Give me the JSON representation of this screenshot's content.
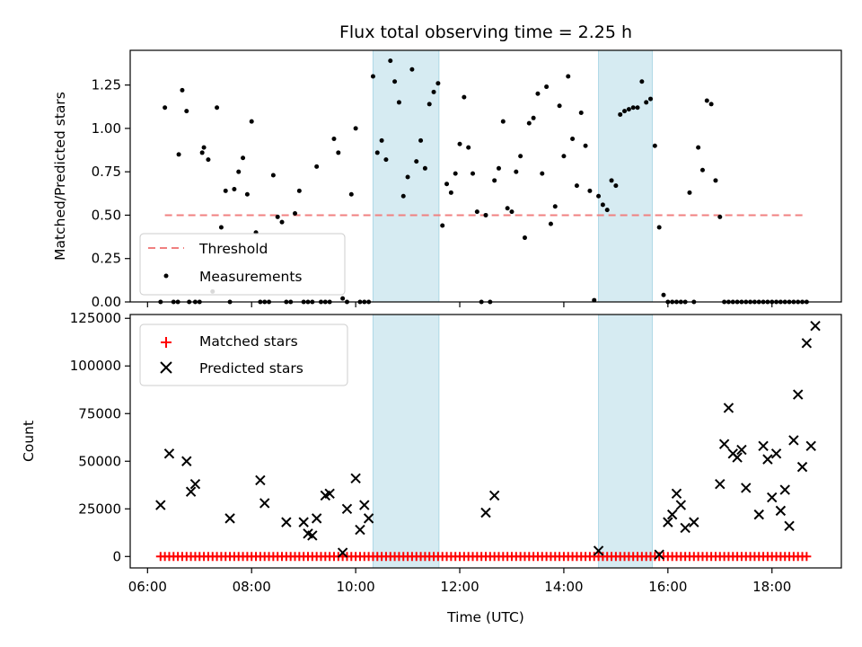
{
  "chart_data": [
    {
      "type": "scatter",
      "title": "Flux total observing time = 2.25 h",
      "xlabel": "",
      "ylabel": "Matched/Predicted stars",
      "xlim": [
        "05:40",
        "19:20"
      ],
      "ylim": [
        0,
        1.45
      ],
      "x_ticks": [
        "06:00",
        "08:00",
        "10:00",
        "12:00",
        "14:00",
        "16:00",
        "18:00"
      ],
      "y_ticks": [
        0.0,
        0.25,
        0.5,
        0.75,
        1.0,
        1.25
      ],
      "y_tick_labels": [
        "0.00",
        "0.25",
        "0.50",
        "0.75",
        "1.00",
        "1.25"
      ],
      "legend": "lower-left",
      "shaded_intervals": [
        [
          "10:20",
          "11:36"
        ],
        [
          "14:40",
          "15:42"
        ]
      ],
      "series": [
        {
          "name": "Threshold",
          "style": "dashed-line",
          "color": "#f08080",
          "x": [
            "06:20",
            "18:40"
          ],
          "y": [
            0.5,
            0.5
          ]
        },
        {
          "name": "Measurements",
          "style": "dots",
          "color": "#000000",
          "points": [
            [
              "06:15",
              0.0
            ],
            [
              "06:20",
              1.12
            ],
            [
              "06:30",
              0.0
            ],
            [
              "06:35",
              0.0
            ],
            [
              "06:36",
              0.85
            ],
            [
              "06:40",
              1.22
            ],
            [
              "06:45",
              1.1
            ],
            [
              "06:48",
              0.0
            ],
            [
              "06:55",
              0.0
            ],
            [
              "07:00",
              0.0
            ],
            [
              "07:03",
              0.86
            ],
            [
              "07:05",
              0.89
            ],
            [
              "07:10",
              0.82
            ],
            [
              "07:15",
              0.06
            ],
            [
              "07:20",
              1.12
            ],
            [
              "07:25",
              0.43
            ],
            [
              "07:30",
              0.64
            ],
            [
              "07:35",
              0.0
            ],
            [
              "07:40",
              0.65
            ],
            [
              "07:45",
              0.75
            ],
            [
              "07:50",
              0.83
            ],
            [
              "07:55",
              0.62
            ],
            [
              "08:00",
              1.04
            ],
            [
              "08:05",
              0.4
            ],
            [
              "08:10",
              0.0
            ],
            [
              "08:15",
              0.0
            ],
            [
              "08:20",
              0.0
            ],
            [
              "08:25",
              0.73
            ],
            [
              "08:30",
              0.49
            ],
            [
              "08:35",
              0.46
            ],
            [
              "08:40",
              0.0
            ],
            [
              "08:45",
              0.0
            ],
            [
              "08:50",
              0.51
            ],
            [
              "08:55",
              0.64
            ],
            [
              "09:00",
              0.0
            ],
            [
              "09:05",
              0.0
            ],
            [
              "09:10",
              0.0
            ],
            [
              "09:15",
              0.78
            ],
            [
              "09:20",
              0.0
            ],
            [
              "09:25",
              0.0
            ],
            [
              "09:30",
              0.0
            ],
            [
              "09:35",
              0.94
            ],
            [
              "09:40",
              0.86
            ],
            [
              "09:45",
              0.02
            ],
            [
              "09:50",
              0.0
            ],
            [
              "09:55",
              0.62
            ],
            [
              "10:00",
              1.0
            ],
            [
              "10:05",
              0.0
            ],
            [
              "10:10",
              0.0
            ],
            [
              "10:15",
              0.0
            ],
            [
              "10:20",
              1.3
            ],
            [
              "10:25",
              0.86
            ],
            [
              "10:30",
              0.93
            ],
            [
              "10:35",
              0.82
            ],
            [
              "10:40",
              1.39
            ],
            [
              "10:45",
              1.27
            ],
            [
              "10:50",
              1.15
            ],
            [
              "10:55",
              0.61
            ],
            [
              "11:00",
              0.72
            ],
            [
              "11:05",
              1.34
            ],
            [
              "11:10",
              0.81
            ],
            [
              "11:15",
              0.93
            ],
            [
              "11:20",
              0.77
            ],
            [
              "11:25",
              1.14
            ],
            [
              "11:30",
              1.21
            ],
            [
              "11:35",
              1.26
            ],
            [
              "11:40",
              0.44
            ],
            [
              "11:45",
              0.68
            ],
            [
              "11:50",
              0.63
            ],
            [
              "11:55",
              0.74
            ],
            [
              "12:00",
              0.91
            ],
            [
              "12:05",
              1.18
            ],
            [
              "12:10",
              0.89
            ],
            [
              "12:15",
              0.74
            ],
            [
              "12:20",
              0.52
            ],
            [
              "12:25",
              0.0
            ],
            [
              "12:30",
              0.5
            ],
            [
              "12:35",
              0.0
            ],
            [
              "12:40",
              0.7
            ],
            [
              "12:45",
              0.77
            ],
            [
              "12:50",
              1.04
            ],
            [
              "12:55",
              0.54
            ],
            [
              "13:00",
              0.52
            ],
            [
              "13:05",
              0.75
            ],
            [
              "13:10",
              0.84
            ],
            [
              "13:15",
              0.37
            ],
            [
              "13:20",
              1.03
            ],
            [
              "13:25",
              1.06
            ],
            [
              "13:30",
              1.2
            ],
            [
              "13:35",
              0.74
            ],
            [
              "13:40",
              1.24
            ],
            [
              "13:45",
              0.45
            ],
            [
              "13:50",
              0.55
            ],
            [
              "13:55",
              1.13
            ],
            [
              "14:00",
              0.84
            ],
            [
              "14:05",
              1.3
            ],
            [
              "14:10",
              0.94
            ],
            [
              "14:15",
              0.67
            ],
            [
              "14:20",
              1.09
            ],
            [
              "14:25",
              0.9
            ],
            [
              "14:30",
              0.64
            ],
            [
              "14:35",
              0.01
            ],
            [
              "14:40",
              0.61
            ],
            [
              "14:45",
              0.56
            ],
            [
              "14:50",
              0.53
            ],
            [
              "14:55",
              0.7
            ],
            [
              "15:00",
              0.67
            ],
            [
              "15:05",
              1.08
            ],
            [
              "15:10",
              1.1
            ],
            [
              "15:15",
              1.11
            ],
            [
              "15:20",
              1.12
            ],
            [
              "15:25",
              1.12
            ],
            [
              "15:30",
              1.27
            ],
            [
              "15:35",
              1.15
            ],
            [
              "15:40",
              1.17
            ],
            [
              "15:45",
              0.9
            ],
            [
              "15:50",
              0.43
            ],
            [
              "15:55",
              0.04
            ],
            [
              "16:00",
              0.0
            ],
            [
              "16:05",
              0.0
            ],
            [
              "16:10",
              0.0
            ],
            [
              "16:15",
              0.0
            ],
            [
              "16:20",
              0.0
            ],
            [
              "16:25",
              0.63
            ],
            [
              "16:30",
              0.0
            ],
            [
              "16:35",
              0.89
            ],
            [
              "16:40",
              0.76
            ],
            [
              "16:45",
              1.16
            ],
            [
              "16:50",
              1.14
            ],
            [
              "16:55",
              0.7
            ],
            [
              "17:00",
              0.49
            ],
            [
              "17:05",
              0.0
            ],
            [
              "17:10",
              0.0
            ],
            [
              "17:15",
              0.0
            ],
            [
              "17:20",
              0.0
            ],
            [
              "17:25",
              0.0
            ],
            [
              "17:30",
              0.0
            ],
            [
              "17:35",
              0.0
            ],
            [
              "17:40",
              0.0
            ],
            [
              "17:45",
              0.0
            ],
            [
              "17:50",
              0.0
            ],
            [
              "17:55",
              0.0
            ],
            [
              "18:00",
              0.0
            ],
            [
              "18:05",
              0.0
            ],
            [
              "18:10",
              0.0
            ],
            [
              "18:15",
              0.0
            ],
            [
              "18:20",
              0.0
            ],
            [
              "18:25",
              0.0
            ],
            [
              "18:30",
              0.0
            ],
            [
              "18:35",
              0.0
            ],
            [
              "18:40",
              0.0
            ]
          ]
        }
      ]
    },
    {
      "type": "scatter",
      "title": "",
      "xlabel": "Time (UTC)",
      "ylabel": "Count",
      "xlim": [
        "05:40",
        "19:20"
      ],
      "ylim": [
        -6000,
        127000
      ],
      "x_ticks": [
        "06:00",
        "08:00",
        "10:00",
        "12:00",
        "14:00",
        "16:00",
        "18:00"
      ],
      "y_ticks": [
        0,
        25000,
        50000,
        75000,
        100000,
        125000
      ],
      "y_tick_labels": [
        "0",
        "25000",
        "50000",
        "75000",
        "100000",
        "125000"
      ],
      "legend": "top-left",
      "shaded_intervals": [
        [
          "10:20",
          "11:36"
        ],
        [
          "14:40",
          "15:42"
        ]
      ],
      "series": [
        {
          "name": "Matched stars",
          "marker": "plus",
          "color": "#ff0000",
          "x_start": "06:15",
          "x_end": "18:40",
          "x_step_minutes": 5,
          "y": 0
        },
        {
          "name": "Predicted stars",
          "marker": "x",
          "color": "#000000",
          "points": [
            [
              "06:15",
              27000
            ],
            [
              "06:25",
              54000
            ],
            [
              "06:45",
              50000
            ],
            [
              "06:50",
              34000
            ],
            [
              "06:55",
              38000
            ],
            [
              "07:35",
              20000
            ],
            [
              "08:10",
              40000
            ],
            [
              "08:15",
              28000
            ],
            [
              "08:40",
              18000
            ],
            [
              "09:00",
              18000
            ],
            [
              "09:05",
              12000
            ],
            [
              "09:10",
              11000
            ],
            [
              "09:15",
              20000
            ],
            [
              "09:25",
              32000
            ],
            [
              "09:30",
              33000
            ],
            [
              "09:45",
              2000
            ],
            [
              "09:50",
              25000
            ],
            [
              "10:00",
              41000
            ],
            [
              "10:05",
              14000
            ],
            [
              "10:10",
              27000
            ],
            [
              "10:15",
              20000
            ],
            [
              "12:30",
              23000
            ],
            [
              "12:40",
              32000
            ],
            [
              "14:40",
              3000
            ],
            [
              "15:50",
              1000
            ],
            [
              "16:00",
              18000
            ],
            [
              "16:05",
              22000
            ],
            [
              "16:10",
              33000
            ],
            [
              "16:15",
              27000
            ],
            [
              "16:20",
              15000
            ],
            [
              "16:30",
              18000
            ],
            [
              "17:00",
              38000
            ],
            [
              "17:05",
              59000
            ],
            [
              "17:10",
              78000
            ],
            [
              "17:15",
              54000
            ],
            [
              "17:20",
              52000
            ],
            [
              "17:25",
              56000
            ],
            [
              "17:30",
              36000
            ],
            [
              "17:45",
              22000
            ],
            [
              "17:50",
              58000
            ],
            [
              "17:55",
              51000
            ],
            [
              "18:00",
              31000
            ],
            [
              "18:05",
              54000
            ],
            [
              "18:10",
              24000
            ],
            [
              "18:15",
              35000
            ],
            [
              "18:20",
              16000
            ],
            [
              "18:25",
              61000
            ],
            [
              "18:30",
              85000
            ],
            [
              "18:35",
              47000
            ],
            [
              "18:40",
              112000
            ],
            [
              "18:45",
              58000
            ],
            [
              "18:50",
              121000
            ]
          ]
        }
      ]
    }
  ]
}
